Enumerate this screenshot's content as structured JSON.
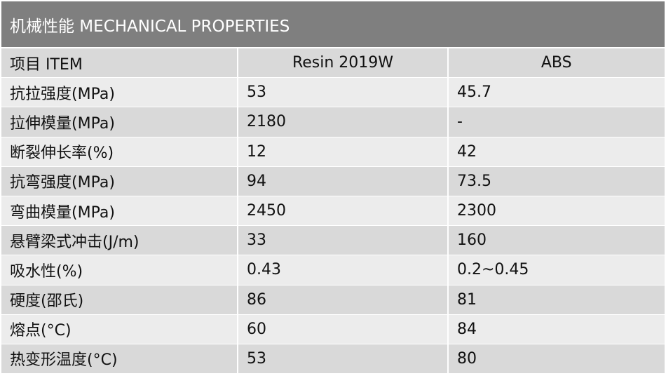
{
  "title": "机械性能 MECHANICAL PROPERTIES",
  "columns": [
    "项目 ITEM",
    "Resin 2019W",
    "ABS"
  ],
  "rows": [
    {
      "item": "抗拉强度(MPa)",
      "resin": "53",
      "abs": "45.7"
    },
    {
      "item": "拉伸模量(MPa)",
      "resin": "2180",
      "abs": "-"
    },
    {
      "item": "断裂伸长率(%)",
      "resin": "12",
      "abs": "42"
    },
    {
      "item": "抗弯强度(MPa)",
      "resin": "94",
      "abs": "73.5"
    },
    {
      "item": "弯曲模量(MPa)",
      "resin": "2450",
      "abs": "2300"
    },
    {
      "item": "悬臂梁式冲击(J/m)",
      "resin": "33",
      "abs": "160"
    },
    {
      "item": "吸水性(%)",
      "resin": "0.43",
      "abs": "0.2~0.45"
    },
    {
      "item": "硬度(邵氏)",
      "resin": "86",
      "abs": "81"
    },
    {
      "item": "熔点(°C)",
      "resin": "60",
      "abs": "84"
    },
    {
      "item": "热变形温度(°C)",
      "resin": "53",
      "abs": "80"
    }
  ]
}
